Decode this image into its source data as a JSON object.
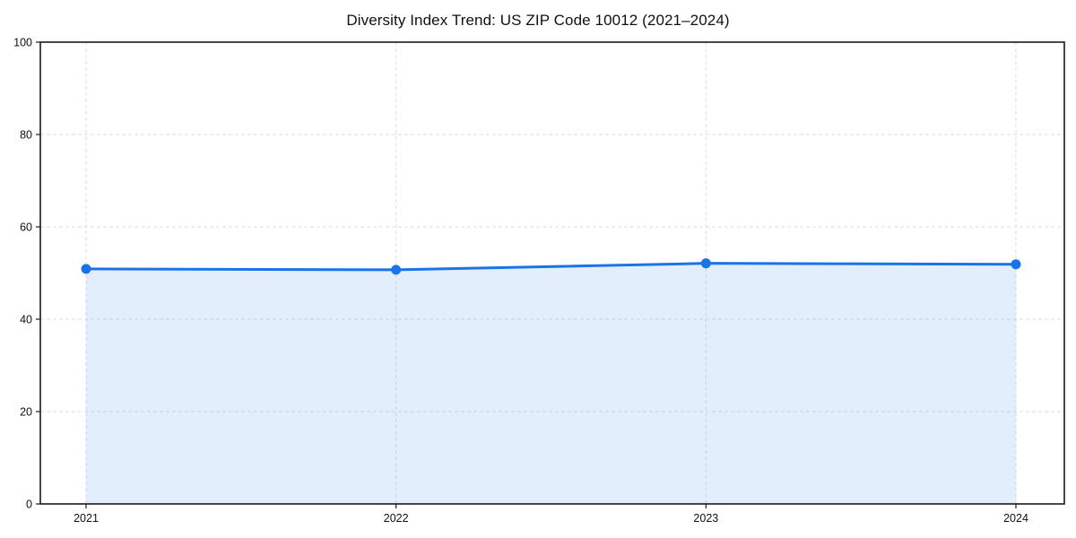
{
  "chart_data": {
    "type": "area",
    "title": "Diversity Index Trend: US ZIP Code 10012 (2021–2024)",
    "x": [
      2021,
      2022,
      2023,
      2024
    ],
    "x_tick_labels": [
      "2021",
      "2022",
      "2023",
      "2024"
    ],
    "series": [
      {
        "name": "Diversity Index",
        "values": [
          50.9,
          50.7,
          52.1,
          51.9
        ]
      }
    ],
    "xlabel": "",
    "ylabel": "",
    "ylim": [
      0,
      100
    ],
    "yticks": [
      0,
      20,
      40,
      60,
      80,
      100
    ],
    "y_tick_labels": [
      "0",
      "20",
      "40",
      "60",
      "80",
      "100"
    ],
    "grid": true,
    "grid_style": "dashed",
    "legend": false,
    "colors": {
      "line": "#1a73e8",
      "marker": "#1a73e8",
      "fill": "#1a73e8",
      "fill_opacity": 0.12,
      "grid": "#dedede",
      "spine": "#1a1a1a",
      "tick_label": "#111111",
      "title": "#111111",
      "background": "#ffffff"
    }
  }
}
